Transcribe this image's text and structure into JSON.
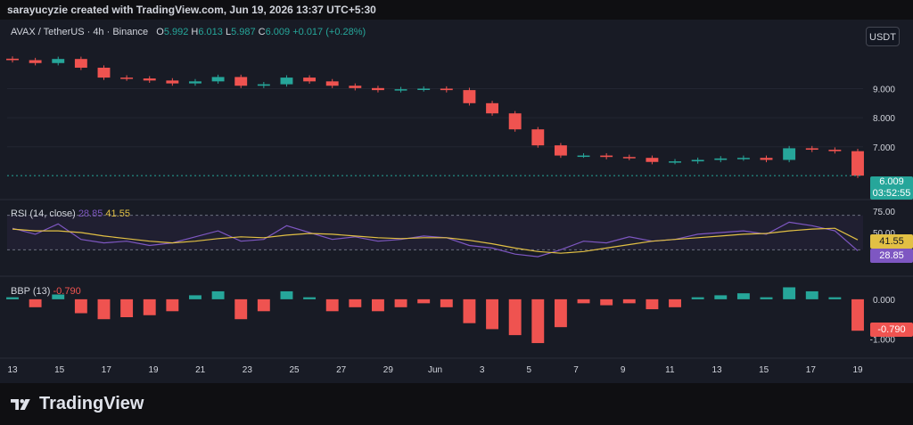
{
  "header": {
    "caption": "sarayucyzie created with TradingView.com, Jun 19, 2026 13:37 UTC+5:30"
  },
  "symbol": {
    "name": "AVAX / TetherUS · 4h · Binance",
    "open_label": "O",
    "open": "5.992",
    "high_label": "H",
    "high": "6.013",
    "low_label": "L",
    "low": "5.987",
    "close_label": "C",
    "close": "6.009",
    "change": "+0.017 (+0.28%)",
    "currency": "USDT"
  },
  "price_tags": {
    "last_price": "6.009",
    "countdown": "03:52:55"
  },
  "rsi_panel": {
    "label": "RSI (14, close)",
    "rsi_value": "28.85",
    "ma_value": "41.55"
  },
  "bbp_panel": {
    "label": "BBP (13)",
    "value": "-0.790"
  },
  "footer": {
    "brand": "TradingView"
  },
  "colors": {
    "up": "#26a69a",
    "down": "#ef5350",
    "rsi": "#7e57c2",
    "rsi_ma": "#e2c044",
    "background": "#181b25",
    "text": "#d1d4dc"
  },
  "chart_data": [
    {
      "type": "candlestick",
      "title": "AVAX / TetherUS · 4h · Binance",
      "x_tick_labels": [
        "13",
        "15",
        "17",
        "19",
        "21",
        "23",
        "25",
        "27",
        "29",
        "Jun",
        "3",
        "5",
        "7",
        "9",
        "11",
        "13",
        "15",
        "17",
        "19"
      ],
      "y_tick_labels": [
        "9.000",
        "8.000",
        "7.000"
      ],
      "ylim": [
        5.4,
        10.7
      ],
      "x": [
        "May 13",
        "May 14",
        "May 15",
        "May 16",
        "May 17",
        "May 18",
        "May 19",
        "May 20",
        "May 21",
        "May 22",
        "May 23",
        "May 24",
        "May 25",
        "May 26",
        "May 27",
        "May 28",
        "May 29",
        "May 30",
        "May 31",
        "Jun 1",
        "Jun 2",
        "Jun 3",
        "Jun 4",
        "Jun 5",
        "Jun 6",
        "Jun 7",
        "Jun 8",
        "Jun 9",
        "Jun 10",
        "Jun 11",
        "Jun 12",
        "Jun 13",
        "Jun 14",
        "Jun 15",
        "Jun 16",
        "Jun 17",
        "Jun 18",
        "Jun 19"
      ],
      "close": [
        9.98,
        9.88,
        10.02,
        9.72,
        9.38,
        9.35,
        9.28,
        9.18,
        9.25,
        9.4,
        9.1,
        9.15,
        9.38,
        9.25,
        9.1,
        9.02,
        8.95,
        8.98,
        9.0,
        8.95,
        8.5,
        8.15,
        7.6,
        7.05,
        6.7,
        6.7,
        6.65,
        6.62,
        6.48,
        6.5,
        6.55,
        6.6,
        6.62,
        6.55,
        6.95,
        6.9,
        6.85,
        6.009
      ],
      "last_price": 6.009
    },
    {
      "type": "line",
      "title": "RSI (14, close)",
      "y_tick_labels": [
        "75.00",
        "50.00"
      ],
      "ylim": [
        20,
        80
      ],
      "bands": [
        30,
        70
      ],
      "series": [
        {
          "name": "RSI",
          "values": [
            55,
            48,
            60,
            42,
            38,
            40,
            35,
            38,
            45,
            52,
            40,
            42,
            58,
            50,
            42,
            45,
            40,
            42,
            46,
            44,
            35,
            32,
            25,
            22,
            30,
            40,
            38,
            45,
            40,
            42,
            48,
            50,
            52,
            48,
            62,
            58,
            52,
            28.85
          ]
        },
        {
          "name": "RSI MA",
          "values": [
            54,
            52,
            52,
            50,
            46,
            43,
            40,
            38,
            40,
            43,
            45,
            44,
            47,
            49,
            48,
            46,
            44,
            43,
            44,
            44,
            41,
            37,
            32,
            28,
            26,
            28,
            32,
            36,
            40,
            42,
            44,
            46,
            48,
            49,
            52,
            54,
            55,
            41.55
          ]
        }
      ]
    },
    {
      "type": "bar",
      "title": "BBP (13)",
      "y_tick_labels": [
        "0.000",
        "-1.000"
      ],
      "ylim": [
        -1.3,
        0.4
      ],
      "values": [
        0.05,
        -0.2,
        0.12,
        -0.35,
        -0.5,
        -0.45,
        -0.4,
        -0.3,
        0.1,
        0.2,
        -0.5,
        -0.3,
        0.2,
        0.05,
        -0.3,
        -0.2,
        -0.3,
        -0.2,
        -0.1,
        -0.2,
        -0.6,
        -0.75,
        -0.9,
        -1.1,
        -0.7,
        -0.1,
        -0.15,
        -0.1,
        -0.25,
        -0.2,
        0.05,
        0.1,
        0.15,
        0.05,
        0.3,
        0.2,
        0.05,
        -0.79
      ]
    }
  ]
}
